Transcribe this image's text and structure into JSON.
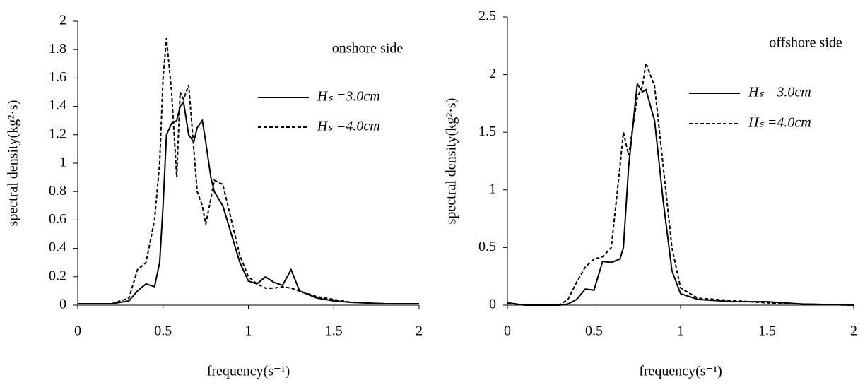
{
  "chart_data": [
    {
      "type": "line",
      "x_label": "frequency(s⁻¹)",
      "y_label": "spectral density(kg²·s)",
      "annotation": "onshore side",
      "x": [
        0,
        0.1,
        0.2,
        0.3,
        0.35,
        0.4,
        0.45,
        0.48,
        0.5,
        0.52,
        0.55,
        0.58,
        0.6,
        0.62,
        0.65,
        0.68,
        0.7,
        0.73,
        0.75,
        0.78,
        0.8,
        0.85,
        0.9,
        0.95,
        1.0,
        1.05,
        1.1,
        1.15,
        1.2,
        1.25,
        1.3,
        1.4,
        1.5,
        1.6,
        1.8,
        2.0
      ],
      "series": [
        {
          "name": "Hₛ =3.0cm",
          "color": "#000000",
          "line_style": "solid",
          "values": [
            0.01,
            0.01,
            0.01,
            0.03,
            0.1,
            0.15,
            0.13,
            0.3,
            0.7,
            1.2,
            1.28,
            1.3,
            1.4,
            1.43,
            1.2,
            1.15,
            1.25,
            1.3,
            1.15,
            0.9,
            0.8,
            0.7,
            0.5,
            0.3,
            0.17,
            0.15,
            0.2,
            0.16,
            0.14,
            0.25,
            0.1,
            0.05,
            0.03,
            0.02,
            0.01,
            0.01
          ]
        },
        {
          "name": "Hₛ =4.0cm",
          "color": "#000000",
          "line_style": "dashed",
          "values": [
            0.01,
            0.01,
            0.01,
            0.05,
            0.25,
            0.3,
            0.6,
            1.0,
            1.6,
            1.88,
            1.5,
            0.9,
            1.5,
            1.45,
            1.55,
            1.1,
            0.8,
            0.7,
            0.57,
            0.75,
            0.88,
            0.85,
            0.6,
            0.35,
            0.2,
            0.15,
            0.12,
            0.12,
            0.13,
            0.12,
            0.1,
            0.06,
            0.04,
            0.02,
            0.01,
            0.01
          ]
        }
      ],
      "xlim": [
        0,
        2
      ],
      "xticks": [
        0,
        0.5,
        1,
        1.5,
        2
      ],
      "ylim": [
        0,
        2
      ],
      "yticks": [
        0,
        0.2,
        0.4,
        0.6,
        0.8,
        1,
        1.2,
        1.4,
        1.6,
        1.8,
        2
      ],
      "grid": false,
      "legend": "upper right"
    },
    {
      "type": "line",
      "x_label": "frequency(s⁻¹)",
      "y_label": "spectral density(kg²·s)",
      "annotation": "offshore side",
      "x": [
        0,
        0.1,
        0.2,
        0.3,
        0.35,
        0.4,
        0.45,
        0.5,
        0.55,
        0.6,
        0.65,
        0.67,
        0.7,
        0.75,
        0.78,
        0.8,
        0.85,
        0.9,
        0.95,
        1.0,
        1.1,
        1.2,
        1.3,
        1.5,
        1.7,
        2.0
      ],
      "series": [
        {
          "name": "Hₛ =3.0cm",
          "color": "#000000",
          "line_style": "solid",
          "values": [
            0.02,
            0,
            0,
            0,
            0.01,
            0.05,
            0.14,
            0.13,
            0.38,
            0.37,
            0.4,
            0.5,
            1.2,
            1.92,
            1.85,
            1.87,
            1.6,
            0.9,
            0.3,
            0.1,
            0.05,
            0.04,
            0.03,
            0.03,
            0.01,
            0
          ]
        },
        {
          "name": "Hₛ =4.0cm",
          "color": "#000000",
          "line_style": "dashed",
          "values": [
            0.02,
            0,
            0,
            0,
            0.05,
            0.2,
            0.33,
            0.4,
            0.42,
            0.5,
            1.2,
            1.5,
            1.3,
            1.8,
            1.9,
            2.1,
            1.9,
            1.2,
            0.5,
            0.15,
            0.06,
            0.05,
            0.04,
            0.02,
            0.01,
            0
          ]
        }
      ],
      "xlim": [
        0,
        2
      ],
      "xticks": [
        0,
        0.5,
        1,
        1.5,
        2
      ],
      "ylim": [
        0,
        2.5
      ],
      "yticks": [
        0,
        0.5,
        1,
        1.5,
        2,
        2.5
      ],
      "grid": false,
      "legend": "upper right"
    }
  ]
}
